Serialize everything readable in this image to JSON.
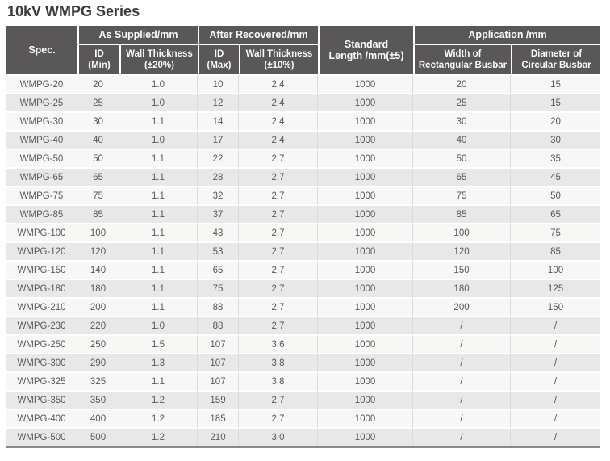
{
  "page_title": "10kV WMPG Series",
  "colors": {
    "header_bg": "#595757",
    "header_text": "#fbfbfb",
    "row_odd": "#f7f7f6",
    "row_even": "#e9e8e8",
    "cell_text": "#595757",
    "title_text": "#3b3b3b",
    "bottom_border": "#8a8a8a"
  },
  "table": {
    "header": {
      "spec": "Spec.",
      "group_as_supplied": "As Supplied/mm",
      "group_after_recovered": "After Recovered/mm",
      "standard_length": "Standard\nLength /mm(±5)",
      "group_application": "Application /mm",
      "id_min": "ID\n(Min)",
      "wall_thickness_20": "Wall Thickness\n(±20%)",
      "id_max": "ID\n(Max)",
      "wall_thickness_10": "Wall Thickness\n(±10%)",
      "width_rect_busbar": "Width of\nRectangular Busbar",
      "dia_circ_busbar": "Diameter of\nCircular Busbar"
    },
    "columns": [
      "Spec.",
      "ID (Min)",
      "Wall Thickness (±20%)",
      "ID (Max)",
      "Wall Thickness (±10%)",
      "Standard Length /mm(±5)",
      "Width of Rectangular Busbar",
      "Diameter of Circular Busbar"
    ],
    "rows": [
      [
        "WMPG-20",
        "20",
        "1.0",
        "10",
        "2.4",
        "1000",
        "20",
        "15"
      ],
      [
        "WMPG-25",
        "25",
        "1.0",
        "12",
        "2.4",
        "1000",
        "25",
        "15"
      ],
      [
        "WMPG-30",
        "30",
        "1.1",
        "14",
        "2.4",
        "1000",
        "30",
        "20"
      ],
      [
        "WMPG-40",
        "40",
        "1.0",
        "17",
        "2.4",
        "1000",
        "40",
        "30"
      ],
      [
        "WMPG-50",
        "50",
        "1.1",
        "22",
        "2.7",
        "1000",
        "50",
        "35"
      ],
      [
        "WMPG-65",
        "65",
        "1.1",
        "28",
        "2.7",
        "1000",
        "65",
        "45"
      ],
      [
        "WMPG-75",
        "75",
        "1.1",
        "32",
        "2.7",
        "1000",
        "75",
        "50"
      ],
      [
        "WMPG-85",
        "85",
        "1.1",
        "37",
        "2.7",
        "1000",
        "85",
        "65"
      ],
      [
        "WMPG-100",
        "100",
        "1.1",
        "43",
        "2.7",
        "1000",
        "100",
        "75"
      ],
      [
        "WMPG-120",
        "120",
        "1.1",
        "53",
        "2.7",
        "1000",
        "120",
        "85"
      ],
      [
        "WMPG-150",
        "140",
        "1.1",
        "65",
        "2.7",
        "1000",
        "150",
        "100"
      ],
      [
        "WMPG-180",
        "180",
        "1.1",
        "75",
        "2.7",
        "1000",
        "180",
        "125"
      ],
      [
        "WMPG-210",
        "200",
        "1.1",
        "88",
        "2.7",
        "1000",
        "200",
        "150"
      ],
      [
        "WMPG-230",
        "220",
        "1.0",
        "88",
        "2.7",
        "1000",
        "/",
        "/"
      ],
      [
        "WMPG-250",
        "250",
        "1.5",
        "107",
        "3.6",
        "1000",
        "/",
        "/"
      ],
      [
        "WMPG-300",
        "290",
        "1.3",
        "107",
        "3.8",
        "1000",
        "/",
        "/"
      ],
      [
        "WMPG-325",
        "325",
        "1.1",
        "107",
        "3.8",
        "1000",
        "/",
        "/"
      ],
      [
        "WMPG-350",
        "350",
        "1.2",
        "159",
        "2.7",
        "1000",
        "/",
        "/"
      ],
      [
        "WMPG-400",
        "400",
        "1.2",
        "185",
        "2.7",
        "1000",
        "/",
        "/"
      ],
      [
        "WMPG-500",
        "500",
        "1.2",
        "210",
        "3.0",
        "1000",
        "/",
        "/"
      ]
    ]
  }
}
